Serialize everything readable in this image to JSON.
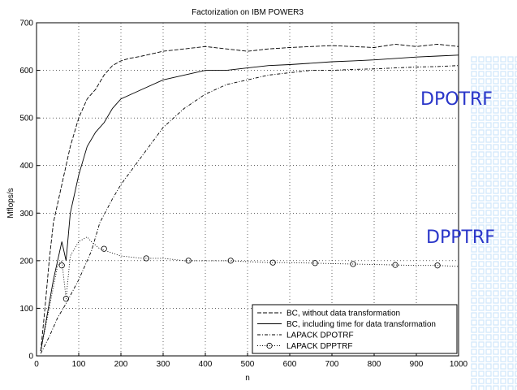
{
  "overlay_labels": [
    "DPOTRF",
    "DPPTRF"
  ],
  "colors": {
    "overlay_text": "#2a36c9",
    "decor_grid": "#cfe6fb",
    "line": "#000000"
  },
  "chart_data": {
    "type": "line",
    "title": "Factorization on IBM POWER3",
    "xlabel": "n",
    "ylabel": "Mflops/s",
    "xlim": [
      0,
      1000
    ],
    "ylim": [
      0,
      700
    ],
    "xticks": [
      0,
      100,
      200,
      300,
      400,
      500,
      600,
      700,
      800,
      900,
      1000
    ],
    "yticks": [
      0,
      100,
      200,
      300,
      400,
      500,
      600,
      700
    ],
    "grid": true,
    "legend_position": "bottom-right",
    "series": [
      {
        "name": "BC, without data transformation",
        "style": "dashed",
        "x": [
          10,
          20,
          30,
          40,
          50,
          60,
          70,
          80,
          90,
          100,
          120,
          140,
          160,
          180,
          200,
          220,
          250,
          300,
          350,
          400,
          450,
          500,
          550,
          600,
          650,
          700,
          750,
          800,
          850,
          900,
          950,
          1000
        ],
        "y": [
          10,
          100,
          200,
          280,
          320,
          360,
          400,
          440,
          470,
          500,
          540,
          560,
          590,
          610,
          620,
          625,
          630,
          640,
          645,
          650,
          645,
          640,
          645,
          648,
          650,
          652,
          650,
          648,
          655,
          650,
          655,
          650
        ]
      },
      {
        "name": "BC, including time for data transformation",
        "style": "solid",
        "x": [
          10,
          20,
          30,
          40,
          50,
          60,
          70,
          80,
          90,
          100,
          120,
          140,
          160,
          180,
          200,
          250,
          300,
          350,
          400,
          450,
          500,
          550,
          600,
          650,
          700,
          750,
          800,
          850,
          900,
          950,
          1000
        ],
        "y": [
          10,
          60,
          110,
          160,
          200,
          240,
          200,
          300,
          340,
          380,
          440,
          470,
          490,
          520,
          540,
          560,
          580,
          590,
          600,
          600,
          605,
          610,
          612,
          615,
          618,
          620,
          622,
          625,
          628,
          630,
          632
        ]
      },
      {
        "name": "LAPACK DPOTRF",
        "style": "dashdot",
        "x": [
          10,
          30,
          50,
          70,
          100,
          130,
          150,
          180,
          200,
          250,
          300,
          350,
          400,
          450,
          500,
          550,
          600,
          650,
          700,
          750,
          800,
          850,
          900,
          950,
          1000
        ],
        "y": [
          5,
          40,
          80,
          110,
          160,
          220,
          280,
          330,
          360,
          420,
          480,
          520,
          550,
          570,
          580,
          590,
          595,
          600,
          600,
          602,
          603,
          605,
          607,
          608,
          610
        ]
      },
      {
        "name": "LAPACK DPPTRF",
        "style": "dotted-circle",
        "x": [
          10,
          30,
          50,
          60,
          70,
          80,
          100,
          120,
          130,
          150,
          200,
          250,
          300,
          350,
          400,
          450,
          500,
          550,
          600,
          650,
          700,
          750,
          800,
          850,
          900,
          950,
          1000
        ],
        "y": [
          10,
          100,
          190,
          200,
          120,
          210,
          240,
          250,
          240,
          225,
          210,
          205,
          205,
          200,
          200,
          200,
          198,
          196,
          196,
          195,
          194,
          193,
          192,
          191,
          190,
          190,
          188
        ],
        "markers_x": [
          60,
          70,
          160,
          260,
          360,
          460,
          560,
          660,
          750,
          850,
          950
        ],
        "markers_y": [
          190,
          120,
          225,
          205,
          200,
          200,
          196,
          195,
          193,
          191,
          190
        ]
      }
    ]
  }
}
